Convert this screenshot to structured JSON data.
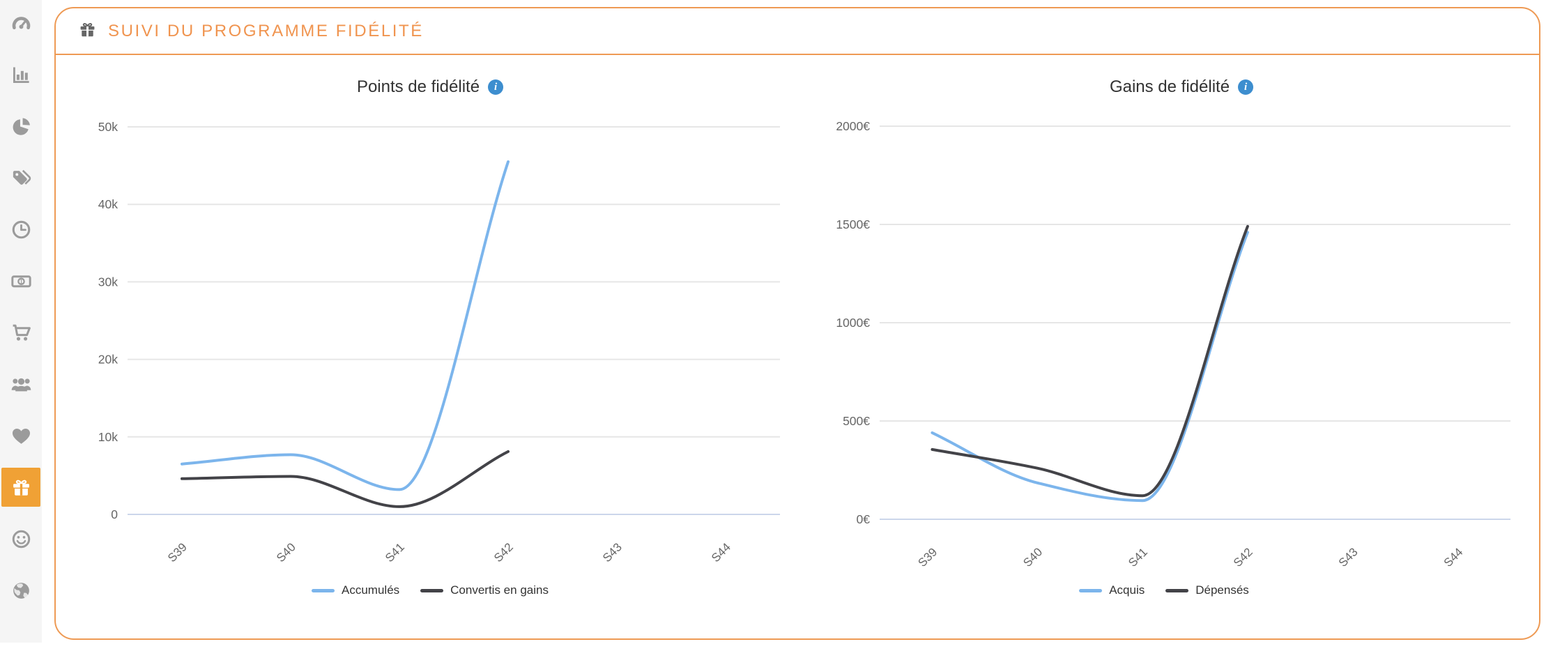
{
  "header": {
    "title": "SUIVI DU PROGRAMME FIDÉLITÉ",
    "icon": "gift-icon"
  },
  "colors": {
    "accent_orange": "#ee9a54",
    "header_text_orange": "#f0944f",
    "sidebar_active_orange": "#f0a135",
    "sidebar_icon_gray": "#9b9b9b",
    "info_badge_blue": "#3d8ecf",
    "grid_gray": "#e6e6e6",
    "baseline_blue": "#ccd6eb",
    "series_blue": "#7cb5ec",
    "series_dark": "#434348",
    "axis_label_gray": "#666666"
  },
  "sidebar": {
    "items": [
      {
        "id": "dashboard",
        "icon": "gauge-icon",
        "active": false
      },
      {
        "id": "bar-stats",
        "icon": "bar-chart-icon",
        "active": false
      },
      {
        "id": "pie-stats",
        "icon": "pie-chart-icon",
        "active": false
      },
      {
        "id": "tags",
        "icon": "tags-icon",
        "active": false
      },
      {
        "id": "history",
        "icon": "clock-icon",
        "active": false
      },
      {
        "id": "revenue",
        "icon": "money-icon",
        "active": false
      },
      {
        "id": "orders",
        "icon": "cart-icon",
        "active": false
      },
      {
        "id": "customers",
        "icon": "users-icon",
        "active": false
      },
      {
        "id": "favorites",
        "icon": "heart-icon",
        "active": false
      },
      {
        "id": "loyalty",
        "icon": "gift-icon",
        "active": true
      },
      {
        "id": "satisfaction",
        "icon": "smiley-icon",
        "active": false
      },
      {
        "id": "web",
        "icon": "globe-icon",
        "active": false
      }
    ]
  },
  "chart_data": [
    {
      "type": "line",
      "title": "Points de fidélité",
      "has_info_icon": true,
      "categories": [
        "S39",
        "S40",
        "S41",
        "S42",
        "S43",
        "S44"
      ],
      "series": [
        {
          "name": "Accumulés",
          "color": "#7cb5ec",
          "values": [
            6500,
            7700,
            3200,
            45500,
            null,
            null
          ]
        },
        {
          "name": "Convertis en gains",
          "color": "#434348",
          "values": [
            4600,
            4900,
            1000,
            8100,
            null,
            null
          ]
        }
      ],
      "ylim": [
        0,
        50000
      ],
      "yticks": [
        {
          "v": 0,
          "label": "0"
        },
        {
          "v": 10000,
          "label": "10k"
        },
        {
          "v": 20000,
          "label": "20k"
        },
        {
          "v": 30000,
          "label": "30k"
        },
        {
          "v": 40000,
          "label": "40k"
        },
        {
          "v": 50000,
          "label": "50k"
        }
      ],
      "grid": true,
      "legend_position": "bottom"
    },
    {
      "type": "line",
      "title": "Gains de fidélité",
      "has_info_icon": true,
      "categories": [
        "S39",
        "S40",
        "S41",
        "S42",
        "S43",
        "S44"
      ],
      "series": [
        {
          "name": "Acquis",
          "color": "#7cb5ec",
          "values": [
            440,
            185,
            95,
            1460,
            null,
            null
          ]
        },
        {
          "name": "Dépensés",
          "color": "#434348",
          "values": [
            355,
            260,
            120,
            1490,
            null,
            null
          ]
        }
      ],
      "ylim": [
        0,
        2000
      ],
      "yticks": [
        {
          "v": 0,
          "label": "0€"
        },
        {
          "v": 500,
          "label": "500€"
        },
        {
          "v": 1000,
          "label": "1000€"
        },
        {
          "v": 1500,
          "label": "1500€"
        },
        {
          "v": 2000,
          "label": "2000€"
        }
      ],
      "grid": true,
      "legend_position": "bottom"
    }
  ]
}
